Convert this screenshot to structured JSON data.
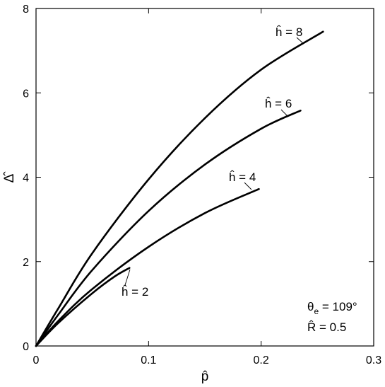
{
  "chart_data": {
    "type": "line",
    "xlabel": "p̂",
    "ylabel": "Δ̂",
    "xlim": [
      0,
      0.3
    ],
    "ylim": [
      0,
      8
    ],
    "xticks": [
      0,
      0.1,
      0.2,
      0.3
    ],
    "xtick_labels": [
      "0",
      "0.1",
      "0.2",
      "0.3"
    ],
    "yticks": [
      0,
      2,
      4,
      6,
      8
    ],
    "ytick_labels": [
      "0",
      "2",
      "4",
      "6",
      "8"
    ],
    "grid": false,
    "series": [
      {
        "name": "ĥ = 8",
        "x": [
          0,
          0.02,
          0.05,
          0.1,
          0.15,
          0.2,
          0.255
        ],
        "y": [
          0,
          0.9,
          2.2,
          3.95,
          5.4,
          6.55,
          7.45
        ]
      },
      {
        "name": "ĥ = 6",
        "x": [
          0,
          0.02,
          0.05,
          0.1,
          0.15,
          0.2,
          0.235
        ],
        "y": [
          0,
          0.75,
          1.8,
          3.2,
          4.3,
          5.15,
          5.58
        ]
      },
      {
        "name": "ĥ = 4",
        "x": [
          0,
          0.02,
          0.05,
          0.1,
          0.15,
          0.198
        ],
        "y": [
          0,
          0.6,
          1.35,
          2.35,
          3.15,
          3.72
        ]
      },
      {
        "name": "ĥ = 2",
        "x": [
          0,
          0.02,
          0.05,
          0.07,
          0.083
        ],
        "y": [
          0,
          0.55,
          1.25,
          1.65,
          1.85
        ]
      }
    ],
    "annotations": {
      "theta": "θ",
      "theta_sub": "e",
      "theta_value": " = 109°",
      "r_label": "R̂ = 0.5"
    }
  }
}
